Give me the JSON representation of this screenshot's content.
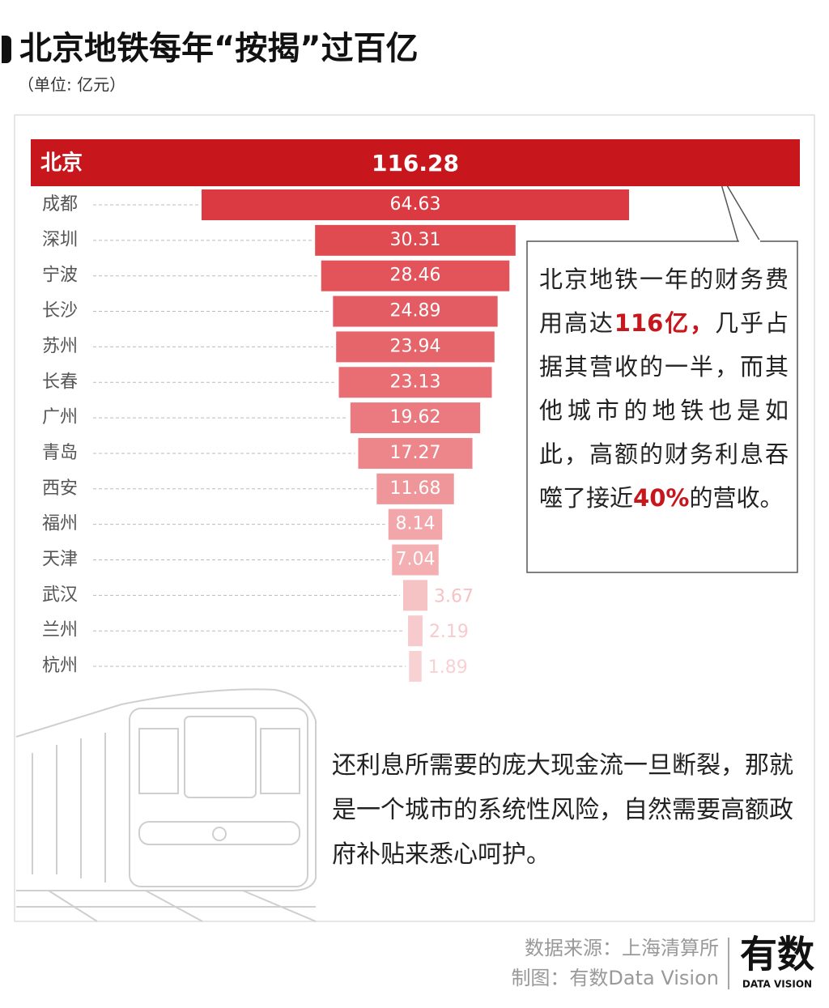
{
  "chart_data": {
    "type": "funnel",
    "title": "北京地铁每年“按揭”过百亿",
    "subtitle": "（单位: 亿元）",
    "categories": [
      "北京",
      "成都",
      "深圳",
      "宁波",
      "长沙",
      "苏州",
      "长春",
      "广州",
      "青岛",
      "西安",
      "福州",
      "天津",
      "武汉",
      "兰州",
      "杭州"
    ],
    "values": [
      116.28,
      64.63,
      30.31,
      28.46,
      24.89,
      23.94,
      23.13,
      19.62,
      17.27,
      11.68,
      8.14,
      7.04,
      3.67,
      2.19,
      1.89
    ],
    "colors": [
      "#c8161d",
      "#dc3a42",
      "#e04a51",
      "#e2535a",
      "#e45c63",
      "#e6656b",
      "#e86e74",
      "#ea7a80",
      "#ec868b",
      "#ef969a",
      "#f2a6a9",
      "#f3afb2",
      "#f6c3c5",
      "#f7cbcd",
      "#f8d1d3"
    ],
    "callout": [
      {
        "text": "北京地铁一年的财务费用高达",
        "highlight": false
      },
      {
        "text": "116亿，",
        "highlight": true
      },
      {
        "text": "几乎占据其营收的一半，而其他城市的地铁也是如此，高额的财务利息吞噬了接近",
        "highlight": false
      },
      {
        "text": "40%",
        "highlight": true
      },
      {
        "text": "的营收。",
        "highlight": false
      }
    ],
    "note": "还利息所需要的庞大现金流一旦断裂，那就是一个城市的系统性风险，自然需要高额政府补贴来悉心呵护。",
    "source": "数据来源：上海清算所",
    "credit": "制图：有数Data Vision",
    "logo": "有数",
    "logo_sub": "DATA VISION"
  }
}
